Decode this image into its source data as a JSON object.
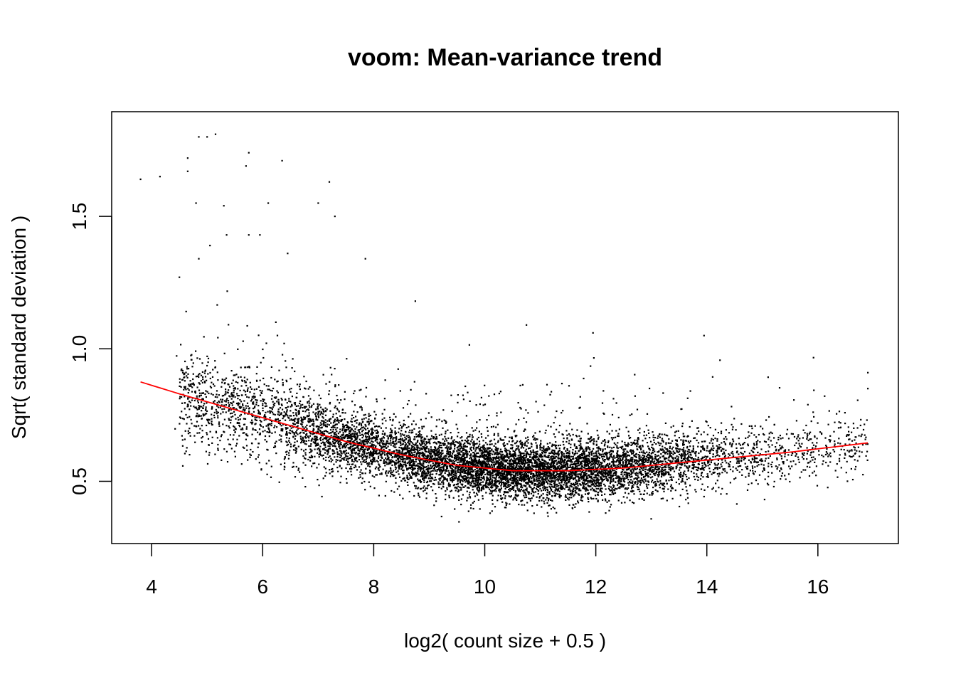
{
  "chart_data": {
    "type": "scatter",
    "title": "voom: Mean-variance trend",
    "xlabel": "log2( count size + 0.5 )",
    "ylabel": "Sqrt( standard deviation )",
    "xlim": [
      3.28,
      17.45
    ],
    "ylim": [
      0.265,
      1.895
    ],
    "x_ticks": [
      4,
      6,
      8,
      10,
      12,
      14,
      16
    ],
    "x_tick_labels": [
      "4",
      "6",
      "8",
      "10",
      "12",
      "14",
      "16"
    ],
    "y_ticks": [
      0.5,
      1.0,
      1.5
    ],
    "y_tick_labels": [
      "0.5",
      "1.0",
      "1.5"
    ],
    "grid": false,
    "point_color": "#000000",
    "trend_color": "#ff0000",
    "cloud": {
      "x_range": [
        4.3,
        16.9
      ],
      "density_peak_x": 10.5,
      "note_points": 9000
    },
    "trend": {
      "x": [
        3.8,
        4.5,
        5.5,
        6.5,
        7.5,
        8.5,
        9.5,
        10.5,
        11.5,
        12.5,
        13.5,
        14.5,
        15.5,
        16.9
      ],
      "y": [
        0.875,
        0.83,
        0.77,
        0.71,
        0.65,
        0.6,
        0.56,
        0.54,
        0.54,
        0.55,
        0.57,
        0.59,
        0.61,
        0.645
      ]
    },
    "outliers": {
      "x": [
        3.8,
        4.15,
        4.5,
        4.65,
        4.65,
        4.8,
        4.85,
        5.0,
        5.15,
        5.3,
        5.7,
        5.75,
        6.1,
        6.35,
        4.85,
        5.05,
        5.35,
        5.75,
        5.95,
        6.45,
        7.0,
        7.2,
        7.3,
        7.85,
        8.75,
        10.75,
        11.95,
        13.95,
        16.9,
        16.9
      ],
      "y": [
        1.64,
        1.65,
        1.27,
        1.72,
        1.67,
        1.55,
        1.8,
        1.8,
        1.81,
        1.54,
        1.69,
        1.74,
        1.55,
        1.71,
        1.34,
        1.39,
        1.43,
        1.43,
        1.43,
        1.36,
        1.55,
        1.63,
        1.5,
        1.34,
        1.18,
        1.09,
        1.06,
        1.05,
        0.91,
        0.85
      ]
    }
  }
}
